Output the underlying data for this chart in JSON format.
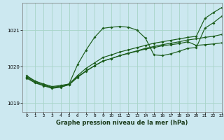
{
  "title": "Graphe pression niveau de la mer (hPa)",
  "bg_color": "#cce8f0",
  "grid_color": "#a8d4c8",
  "line_color": "#1a5c1a",
  "xlim": [
    -0.5,
    23
  ],
  "ylim": [
    1018.75,
    1021.75
  ],
  "yticks": [
    1019,
    1020,
    1021
  ],
  "xticks": [
    0,
    1,
    2,
    3,
    4,
    5,
    6,
    7,
    8,
    9,
    10,
    11,
    12,
    13,
    14,
    15,
    16,
    17,
    18,
    19,
    20,
    21,
    22,
    23
  ],
  "series": [
    [
      1019.72,
      1019.6,
      1019.52,
      1019.45,
      1019.48,
      1019.52,
      1020.05,
      1020.45,
      1020.8,
      1021.05,
      1021.08,
      1021.1,
      1021.08,
      1021.0,
      1020.78,
      1020.32,
      1020.3,
      1020.35,
      1020.42,
      1020.5,
      1020.52,
      1021.05,
      1021.2,
      1021.38
    ],
    [
      1019.68,
      1019.55,
      1019.47,
      1019.4,
      1019.43,
      1019.5,
      1019.72,
      1019.88,
      1020.02,
      1020.15,
      1020.22,
      1020.3,
      1020.36,
      1020.42,
      1020.48,
      1020.52,
      1020.57,
      1020.6,
      1020.63,
      1020.68,
      1020.58,
      1020.6,
      1020.62,
      1020.65
    ],
    [
      1019.7,
      1019.57,
      1019.48,
      1019.42,
      1019.44,
      1019.5,
      1019.7,
      1019.87,
      1020.02,
      1020.15,
      1020.22,
      1020.3,
      1020.37,
      1020.43,
      1020.5,
      1020.55,
      1020.6,
      1020.64,
      1020.68,
      1020.73,
      1020.76,
      1020.8,
      1020.83,
      1020.88
    ],
    [
      1019.75,
      1019.6,
      1019.5,
      1019.43,
      1019.46,
      1019.52,
      1019.75,
      1019.95,
      1020.1,
      1020.25,
      1020.32,
      1020.4,
      1020.46,
      1020.52,
      1020.58,
      1020.64,
      1020.68,
      1020.72,
      1020.76,
      1020.8,
      1020.83,
      1021.32,
      1021.48,
      1021.62
    ]
  ]
}
